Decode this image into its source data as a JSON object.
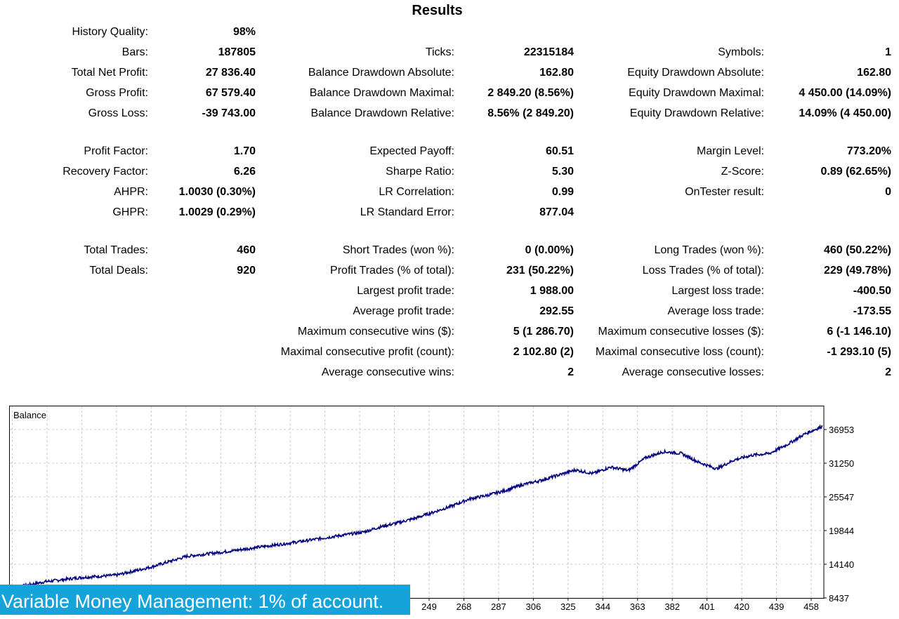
{
  "title": "Results",
  "columns": [
    {
      "rows": [
        [
          "History Quality:",
          "98%"
        ],
        [
          "Bars:",
          "187805"
        ],
        [
          "Total Net Profit:",
          "27 836.40"
        ],
        [
          "Gross Profit:",
          "67 579.40"
        ],
        [
          "Gross Loss:",
          "-39 743.00"
        ],
        [
          "Profit Factor:",
          "1.70"
        ],
        [
          "Recovery Factor:",
          "6.26"
        ],
        [
          "AHPR:",
          "1.0030 (0.30%)"
        ],
        [
          "GHPR:",
          "1.0029 (0.29%)"
        ],
        [
          "Total Trades:",
          "460"
        ],
        [
          "Total Deals:",
          "920"
        ]
      ]
    },
    {
      "rows": [
        [
          "Ticks:",
          "22315184"
        ],
        [
          "Balance Drawdown Absolute:",
          "162.80"
        ],
        [
          "Balance Drawdown Maximal:",
          "2 849.20 (8.56%)"
        ],
        [
          "Balance Drawdown Relative:",
          "8.56% (2 849.20)"
        ],
        [
          "Expected Payoff:",
          "60.51"
        ],
        [
          "Sharpe Ratio:",
          "5.30"
        ],
        [
          "LR Correlation:",
          "0.99"
        ],
        [
          "LR Standard Error:",
          "877.04"
        ],
        [
          "Short Trades (won %):",
          "0 (0.00%)"
        ],
        [
          "Profit Trades (% of total):",
          "231 (50.22%)"
        ],
        [
          "Largest profit trade:",
          "1 988.00"
        ],
        [
          "Average profit trade:",
          "292.55"
        ],
        [
          "Maximum consecutive wins ($):",
          "5 (1 286.70)"
        ],
        [
          "Maximal consecutive profit (count):",
          "2 102.80 (2)"
        ],
        [
          "Average consecutive wins:",
          "2"
        ]
      ]
    },
    {
      "rows": [
        [
          "Symbols:",
          "1"
        ],
        [
          "Equity Drawdown Absolute:",
          "162.80"
        ],
        [
          "Equity Drawdown Maximal:",
          "4 450.00 (14.09%)"
        ],
        [
          "Equity Drawdown Relative:",
          "14.09% (4 450.00)"
        ],
        [
          "Margin Level:",
          "773.20%"
        ],
        [
          "Z-Score:",
          "0.89 (62.65%)"
        ],
        [
          "OnTester result:",
          "0"
        ],
        [
          "Long Trades (won %):",
          "460 (50.22%)"
        ],
        [
          "Loss Trades (% of total):",
          "229 (49.78%)"
        ],
        [
          "Largest loss trade:",
          "-400.50"
        ],
        [
          "Average loss trade:",
          "-173.55"
        ],
        [
          "Maximum consecutive losses ($):",
          "6 (-1 146.10)"
        ],
        [
          "Maximal consecutive loss (count):",
          "-1 293.10 (5)"
        ],
        [
          "Average consecutive losses:",
          "2"
        ]
      ]
    }
  ],
  "chart_data": {
    "type": "line",
    "title": "Balance",
    "line_color": "#000080",
    "grid": true,
    "y_ticks": [
      8437,
      14140,
      19844,
      25547,
      31250,
      36953
    ],
    "x_ticks": [
      249,
      268,
      287,
      306,
      325,
      344,
      363,
      382,
      401,
      420,
      439,
      458
    ],
    "xlim": [
      0,
      460
    ],
    "ylim": [
      8437,
      37700
    ],
    "series": [
      {
        "x": [
          0,
          20,
          40,
          60,
          80,
          100,
          120,
          140,
          160,
          180,
          200,
          210,
          220,
          230,
          240,
          250,
          260,
          270,
          280,
          290,
          300,
          310,
          320,
          330,
          340,
          350,
          360,
          370,
          380,
          390,
          400,
          410,
          420,
          430,
          440,
          450,
          460
        ],
        "y": [
          10100,
          11200,
          11900,
          12300,
          13700,
          15500,
          16200,
          17000,
          17800,
          18700,
          19600,
          20500,
          21200,
          22000,
          23000,
          24000,
          25200,
          25800,
          26600,
          27600,
          28300,
          29200,
          30100,
          29500,
          30600,
          30000,
          32200,
          33200,
          32900,
          31400,
          30300,
          31800,
          32600,
          32900,
          34400,
          36200,
          37500
        ]
      }
    ]
  },
  "banner": "Variable Money Management: 1% of account."
}
